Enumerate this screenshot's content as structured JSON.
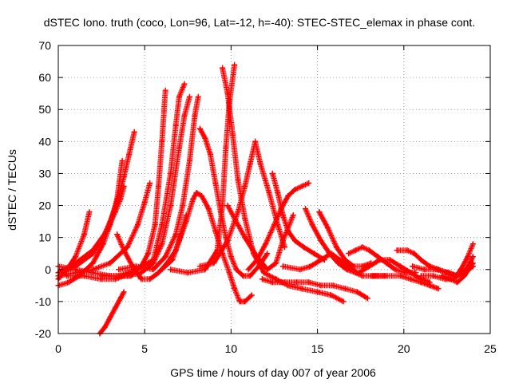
{
  "chart_data": {
    "type": "scatter",
    "title": "dSTEC Iono. truth (coco, Lon=96, Lat=-12, h=-40): STEC-STEC_elemax in phase cont.",
    "xlabel": "GPS time / hours of day 007 of year 2006",
    "ylabel": "dSTEC  / TECUs",
    "xlim": [
      0,
      25
    ],
    "ylim": [
      -20,
      70
    ],
    "xticks": [
      0,
      5,
      10,
      15,
      20,
      25
    ],
    "yticks": [
      -20,
      -10,
      0,
      10,
      20,
      30,
      40,
      50,
      60,
      70
    ],
    "grid": true,
    "marker": "+",
    "color": "#ff0000",
    "series": [
      {
        "x": [
          0.0,
          0.5,
          1.0,
          1.5,
          1.8
        ],
        "y": [
          -3,
          0,
          4,
          11,
          18
        ]
      },
      {
        "x": [
          0.0,
          0.6,
          1.2,
          2.0,
          2.6,
          3.0,
          3.4,
          3.7
        ],
        "y": [
          -5,
          -4,
          -2,
          2,
          8,
          14,
          22,
          34
        ]
      },
      {
        "x": [
          0.0,
          1.0,
          2.0,
          2.8,
          3.3,
          3.6,
          3.8
        ],
        "y": [
          -1,
          2,
          6,
          12,
          18,
          22,
          26
        ]
      },
      {
        "x": [
          0.0,
          1.0,
          2.0,
          2.6,
          3.0,
          3.4,
          3.8,
          4.1,
          4.4
        ],
        "y": [
          -1,
          1,
          5,
          10,
          15,
          21,
          29,
          36,
          43
        ]
      },
      {
        "x": [
          0.0,
          1.0,
          2.0,
          3.0,
          4.0,
          4.6,
          5.0,
          5.3
        ],
        "y": [
          -2,
          -1,
          0,
          2,
          7,
          14,
          21,
          27
        ]
      },
      {
        "x": [
          2.4,
          2.7,
          3.0,
          3.3,
          3.6,
          3.8
        ],
        "y": [
          -20,
          -18,
          -15,
          -12,
          -9,
          -7
        ]
      },
      {
        "x": [
          0.5,
          1.5,
          2.5,
          3.3,
          3.8,
          4.2,
          4.8,
          5.2,
          5.6,
          5.8,
          6.0,
          6.2
        ],
        "y": [
          -2,
          -2,
          -3,
          -3,
          -2,
          -2,
          1,
          5,
          14,
          26,
          40,
          56
        ]
      },
      {
        "x": [
          3.4,
          3.8,
          4.3,
          4.8,
          5.3,
          5.8,
          6.3,
          6.8,
          7.1,
          7.4
        ],
        "y": [
          11,
          6,
          1,
          -3,
          -3,
          -1,
          2,
          6,
          11,
          17
        ]
      },
      {
        "x": [
          0.0,
          1.0,
          2.0,
          3.0,
          4.0,
          4.8,
          5.5,
          6.0,
          6.5,
          7.0,
          7.3,
          7.6
        ],
        "y": [
          1,
          0,
          -1,
          -2,
          -2,
          -1,
          2,
          8,
          20,
          38,
          48,
          54
        ]
      },
      {
        "x": [
          3.5,
          4.5,
          5.5,
          6.2,
          6.8,
          7.2,
          7.6,
          7.9,
          8.1
        ],
        "y": [
          0,
          1,
          0,
          4,
          11,
          20,
          34,
          48,
          54
        ]
      },
      {
        "x": [
          2.5,
          3.5,
          4.5,
          5.5,
          6.0,
          6.5,
          6.8,
          7.0,
          7.3
        ],
        "y": [
          -2,
          -2,
          0,
          3,
          14,
          30,
          45,
          54,
          58
        ]
      },
      {
        "x": [
          6.0,
          6.6,
          7.0,
          7.4,
          7.8,
          8.0,
          8.3,
          8.7,
          9.1,
          9.5,
          9.9,
          10.2,
          10.5,
          10.8,
          11.2
        ],
        "y": [
          0,
          3,
          9,
          15,
          22,
          24,
          23,
          19,
          12,
          5,
          -1,
          -6,
          -10,
          -10,
          -8
        ]
      },
      {
        "x": [
          6.5,
          7.5,
          8.5,
          9.2,
          9.5,
          9.7,
          9.9,
          10.2
        ],
        "y": [
          0,
          -1,
          0,
          6,
          20,
          38,
          52,
          64
        ]
      },
      {
        "x": [
          8.2,
          8.5,
          8.8,
          9.1,
          9.4,
          9.7,
          10.0,
          10.3,
          10.7,
          11.1,
          11.6,
          12.1
        ],
        "y": [
          44,
          41,
          36,
          27,
          18,
          10,
          4,
          0,
          -2,
          -2,
          1,
          5
        ]
      },
      {
        "x": [
          9.5,
          9.8,
          10.1,
          10.4,
          10.8,
          11.3,
          11.9,
          12.6,
          13.3,
          14.1,
          15.0,
          15.8,
          16.5
        ],
        "y": [
          63,
          55,
          42,
          28,
          16,
          5,
          -1,
          -3,
          -5,
          -6,
          -7,
          -8,
          -10
        ]
      },
      {
        "x": [
          8.2,
          9.0,
          9.8,
          10.4,
          10.8,
          11.1,
          11.4,
          11.7,
          12.2,
          12.7,
          13.1
        ],
        "y": [
          1,
          2,
          9,
          18,
          26,
          33,
          40,
          33,
          24,
          14,
          7
        ]
      },
      {
        "x": [
          11.0,
          11.5,
          12.0,
          12.5,
          12.9,
          13.3,
          13.7,
          14.1,
          14.5
        ],
        "y": [
          0,
          3,
          8,
          14,
          19,
          23,
          25,
          26,
          27
        ]
      },
      {
        "x": [
          9.8,
          10.8,
          11.5,
          12.1,
          12.6,
          13.0,
          13.6
        ],
        "y": [
          20,
          10,
          4,
          0,
          2,
          9,
          17
        ]
      },
      {
        "x": [
          12.4,
          12.7,
          13.0,
          13.3,
          13.7,
          14.2,
          14.8,
          15.4
        ],
        "y": [
          30,
          24,
          17,
          12,
          9,
          7,
          5,
          3
        ]
      },
      {
        "x": [
          11.8,
          12.4,
          13.1,
          13.8,
          14.5,
          15.2,
          15.9,
          16.6,
          17.3,
          17.9
        ],
        "y": [
          -3,
          -4,
          -4,
          -4,
          -4,
          -5,
          -5,
          -6,
          -7,
          -9
        ]
      },
      {
        "x": [
          13.0,
          14.0,
          14.6,
          15.2,
          15.8,
          16.3,
          16.8,
          17.3
        ],
        "y": [
          1,
          0,
          1,
          3,
          5,
          3,
          1,
          -1
        ]
      },
      {
        "x": [
          14.3,
          14.7,
          15.2,
          15.7,
          16.2,
          16.7,
          17.2,
          17.6,
          18.1,
          18.5,
          18.9
        ],
        "y": [
          19,
          14,
          9,
          5,
          2,
          0,
          -1,
          -2,
          -2,
          -2,
          -2
        ]
      },
      {
        "x": [
          15.1,
          15.6,
          16.1,
          16.6,
          17.1,
          17.6,
          18.1
        ],
        "y": [
          18,
          13,
          7,
          3,
          1,
          1,
          2
        ]
      },
      {
        "x": [
          16.8,
          17.2,
          17.6,
          18.0,
          18.5,
          19.0,
          19.5,
          20.1,
          20.7
        ],
        "y": [
          5,
          6,
          7,
          6,
          4,
          2,
          0,
          -1,
          -1
        ]
      },
      {
        "x": [
          17.4,
          18.0,
          18.6,
          19.2,
          19.8,
          20.4,
          21.0,
          21.5
        ],
        "y": [
          -1,
          1,
          3,
          3,
          1,
          -1,
          -3,
          -4
        ]
      },
      {
        "x": [
          18.2,
          19.0,
          19.8,
          20.4,
          21.0,
          21.5,
          22.0
        ],
        "y": [
          -2,
          -2,
          -2,
          -3,
          -4,
          -5,
          -6
        ]
      },
      {
        "x": [
          19.6,
          20.2,
          20.6,
          21.0,
          21.5,
          22.0,
          22.5,
          23.0,
          23.5,
          24.0
        ],
        "y": [
          6,
          6,
          5,
          3,
          1,
          0,
          -1,
          -2,
          -1,
          1
        ]
      },
      {
        "x": [
          20.5,
          21.2,
          21.9,
          22.6,
          23.1,
          23.6,
          24.0
        ],
        "y": [
          1,
          0,
          0,
          -1,
          -2,
          0,
          4
        ]
      },
      {
        "x": [
          21.0,
          21.7,
          22.4,
          22.9,
          23.3,
          23.7,
          24.0
        ],
        "y": [
          -2,
          -2,
          -3,
          -3,
          0,
          4,
          8
        ]
      },
      {
        "x": [
          22.2,
          22.7,
          23.1,
          23.5,
          24.0
        ],
        "y": [
          -2,
          -3,
          -4,
          -2,
          2
        ]
      }
    ]
  }
}
